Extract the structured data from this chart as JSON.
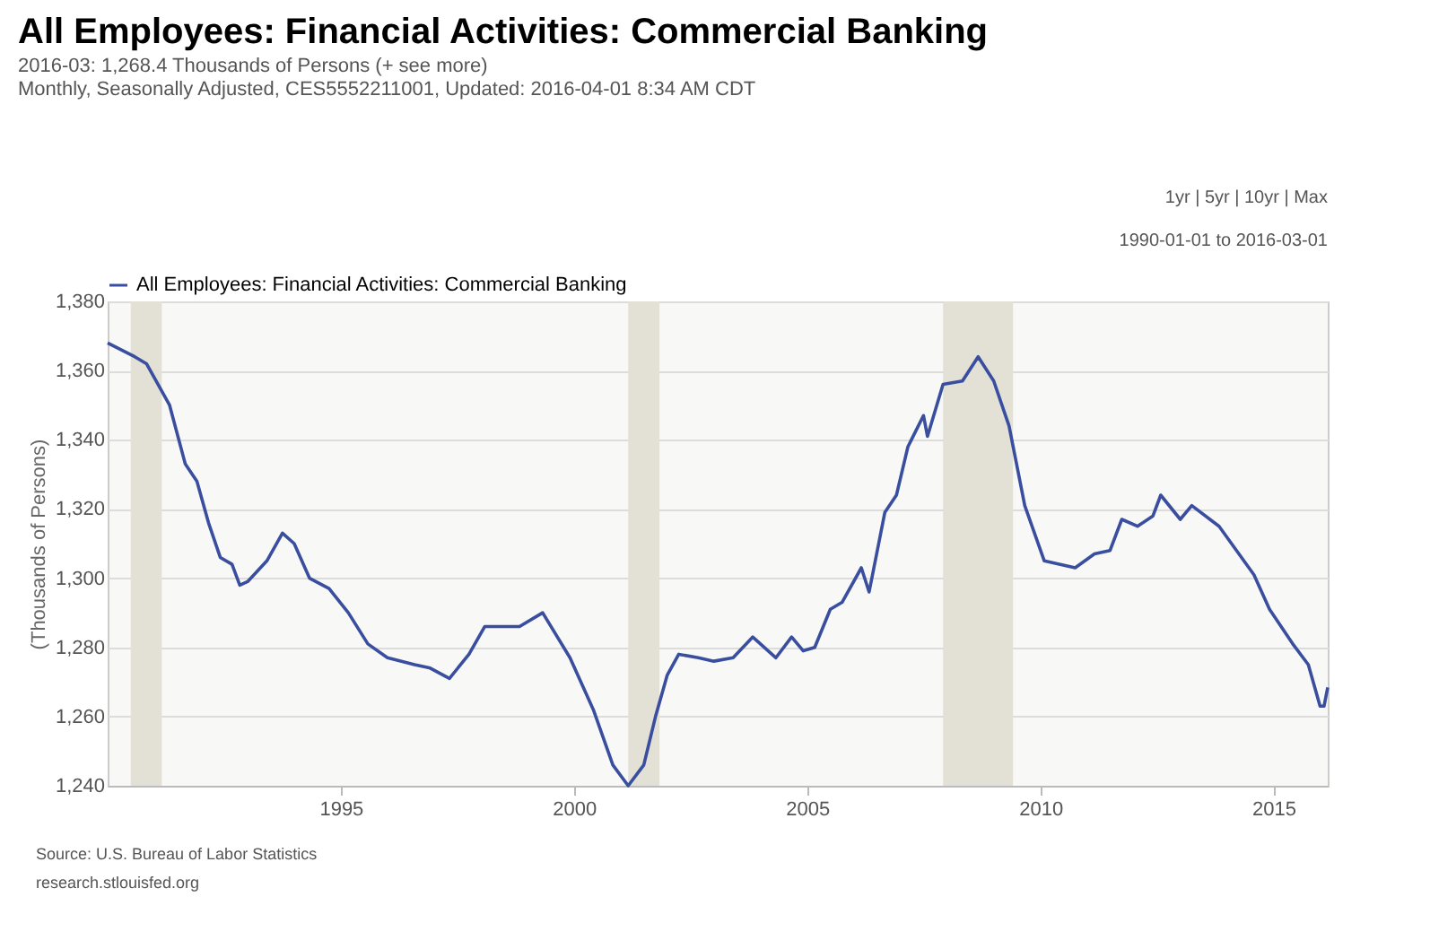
{
  "chart_data": {
    "type": "line",
    "title": "All Employees: Financial Activities: Commercial Banking",
    "subtitle": "2016-03: 1,268.4 Thousands of Persons (+ see more)\nMonthly, Seasonally Adjusted, CES5552211001, Updated: 2016-04-01 8:34 AM CDT",
    "ylabel": "(Thousands of Persons)",
    "annotations": [
      "1yr | 5yr | 10yr | Max",
      "1990-01-01 to 2016-03-01",
      "Source: U.S. Bureau of Labor Statistics",
      "research.stlouisfed.org"
    ],
    "xlim": [
      "1990-01",
      "2016-03"
    ],
    "xticks": [
      "1995",
      "2000",
      "2005",
      "2010",
      "2015"
    ],
    "ylim": [
      1240,
      1380
    ],
    "yticks": [
      {
        "value": 1240,
        "label": "1,240"
      },
      {
        "value": 1260,
        "label": "1,260"
      },
      {
        "value": 1280,
        "label": "1,280"
      },
      {
        "value": 1300,
        "label": "1,300"
      },
      {
        "value": 1320,
        "label": "1,320"
      },
      {
        "value": 1340,
        "label": "1,340"
      },
      {
        "value": 1360,
        "label": "1,360"
      },
      {
        "value": 1380,
        "label": "1,380"
      }
    ],
    "grid": "y",
    "legend": "top left",
    "bands": [
      {
        "axis": "x",
        "from": "1990-07",
        "to": "1991-03",
        "color": "#e3e0d6"
      },
      {
        "axis": "x",
        "from": "2001-03",
        "to": "2001-11",
        "color": "#e3e0d6"
      },
      {
        "axis": "x",
        "from": "2007-12",
        "to": "2009-06",
        "color": "#e3e0d6"
      }
    ],
    "x": [
      "1990-01",
      "1990-08",
      "1990-11",
      "1991-05",
      "1991-09",
      "1991-12",
      "1992-03",
      "1992-06",
      "1992-09",
      "1992-11",
      "1993-01",
      "1993-06",
      "1993-10",
      "1994-01",
      "1994-05",
      "1994-10",
      "1995-03",
      "1995-08",
      "1996-01",
      "1996-08",
      "1996-12",
      "1997-05",
      "1997-10",
      "1998-02",
      "1998-05",
      "1998-11",
      "1999-05",
      "1999-12",
      "2000-06",
      "2000-11",
      "2001-03",
      "2001-07",
      "2001-10",
      "2002-01",
      "2002-04",
      "2002-09",
      "2003-01",
      "2003-06",
      "2003-11",
      "2004-05",
      "2004-09",
      "2004-12",
      "2005-03",
      "2005-07",
      "2005-10",
      "2006-03",
      "2006-05",
      "2006-09",
      "2006-12",
      "2007-03",
      "2007-07",
      "2007-08",
      "2007-12",
      "2008-05",
      "2008-09",
      "2009-01",
      "2009-05",
      "2009-09",
      "2010-02",
      "2010-10",
      "2011-03",
      "2011-07",
      "2011-10",
      "2012-02",
      "2012-06",
      "2012-08",
      "2013-01",
      "2013-04",
      "2013-11",
      "2014-08",
      "2014-12",
      "2015-06",
      "2015-10",
      "2016-01",
      "2016-02",
      "2016-03"
    ],
    "series": [
      {
        "name": "All Employees: Financial Activities: Commercial Banking",
        "color": "#3a4ea0",
        "values": [
          1368,
          1364,
          1362,
          1350,
          1333,
          1328,
          1316,
          1306,
          1304,
          1298,
          1299,
          1305,
          1313,
          1310,
          1300,
          1297,
          1290,
          1281,
          1277,
          1275,
          1274,
          1271,
          1278,
          1286,
          1286,
          1286,
          1290,
          1277,
          1262,
          1246,
          1240,
          1246,
          1260,
          1272,
          1278,
          1277,
          1276,
          1277,
          1283,
          1277,
          1283,
          1279,
          1280,
          1291,
          1293,
          1303,
          1296,
          1319,
          1324,
          1338,
          1347,
          1341,
          1356,
          1357,
          1364,
          1357,
          1344,
          1321,
          1305,
          1303,
          1307,
          1308,
          1317,
          1315,
          1318,
          1324,
          1317,
          1321,
          1315,
          1301,
          1291,
          1281,
          1275,
          1263,
          1263,
          1268.4
        ]
      }
    ]
  }
}
